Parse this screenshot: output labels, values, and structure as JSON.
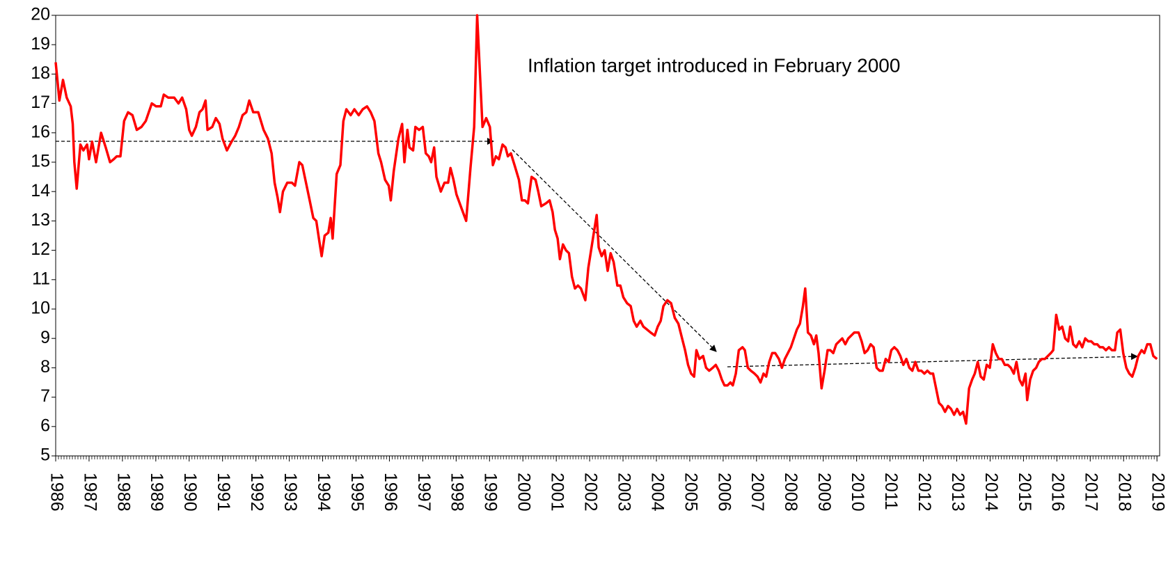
{
  "chart_data": {
    "type": "line",
    "annotation": "Inflation target introduced in February 2000",
    "color": "#ff0000",
    "x": [
      1986.0,
      1986.11,
      1986.22,
      1986.33,
      1986.45,
      1986.51,
      1986.56,
      1986.63,
      1986.74,
      1986.83,
      1986.94,
      1987.0,
      1987.09,
      1987.21,
      1987.36,
      1987.5,
      1987.63,
      1987.74,
      1987.83,
      1987.94,
      1988.05,
      1988.17,
      1988.3,
      1988.43,
      1988.57,
      1988.7,
      1988.88,
      1989.01,
      1989.15,
      1989.24,
      1989.37,
      1989.55,
      1989.68,
      1989.79,
      1989.91,
      1990.0,
      1990.08,
      1990.2,
      1990.31,
      1990.4,
      1990.49,
      1990.55,
      1990.69,
      1990.8,
      1990.91,
      1991.0,
      1991.13,
      1991.27,
      1991.38,
      1991.49,
      1991.6,
      1991.71,
      1991.8,
      1991.92,
      1992.07,
      1992.23,
      1992.36,
      1992.47,
      1992.56,
      1992.65,
      1992.72,
      1992.81,
      1992.94,
      1993.08,
      1993.17,
      1993.3,
      1993.39,
      1993.52,
      1993.61,
      1993.72,
      1993.81,
      1993.9,
      1993.97,
      1994.06,
      1994.17,
      1994.24,
      1994.3,
      1994.42,
      1994.53,
      1994.62,
      1994.71,
      1994.84,
      1994.95,
      1995.08,
      1995.2,
      1995.33,
      1995.44,
      1995.55,
      1995.67,
      1995.75,
      1995.87,
      1995.98,
      1996.04,
      1996.13,
      1996.27,
      1996.38,
      1996.45,
      1996.54,
      1996.6,
      1996.71,
      1996.78,
      1996.89,
      1997.0,
      1997.09,
      1997.18,
      1997.25,
      1997.34,
      1997.41,
      1997.54,
      1997.65,
      1997.76,
      1997.83,
      1997.92,
      1998.01,
      1998.17,
      1998.3,
      1998.43,
      1998.54,
      1998.63,
      1998.79,
      1998.9,
      1999.01,
      1999.1,
      1999.19,
      1999.28,
      1999.39,
      1999.48,
      1999.55,
      1999.64,
      1999.75,
      1999.88,
      1999.97,
      2000.06,
      2000.15,
      2000.26,
      2000.38,
      2000.46,
      2000.55,
      2000.69,
      2000.8,
      2000.89,
      2000.96,
      2001.04,
      2001.11,
      2001.2,
      2001.29,
      2001.38,
      2001.47,
      2001.56,
      2001.65,
      2001.74,
      2001.87,
      2001.96,
      2002.07,
      2002.14,
      2002.21,
      2002.27,
      2002.36,
      2002.45,
      2002.54,
      2002.63,
      2002.72,
      2002.83,
      2002.92,
      2003.01,
      2003.12,
      2003.23,
      2003.32,
      2003.41,
      2003.52,
      2003.61,
      2003.72,
      2003.83,
      2003.95,
      2004.04,
      2004.13,
      2004.21,
      2004.33,
      2004.44,
      2004.55,
      2004.66,
      2004.77,
      2004.86,
      2004.95,
      2005.04,
      2005.13,
      2005.2,
      2005.29,
      2005.4,
      2005.49,
      2005.58,
      2005.69,
      2005.78,
      2005.87,
      2005.96,
      2006.04,
      2006.13,
      2006.22,
      2006.29,
      2006.38,
      2006.47,
      2006.58,
      2006.65,
      2006.74,
      2006.83,
      2006.94,
      2007.03,
      2007.12,
      2007.21,
      2007.29,
      2007.38,
      2007.47,
      2007.56,
      2007.67,
      2007.76,
      2007.85,
      2007.94,
      2008.03,
      2008.12,
      2008.21,
      2008.3,
      2008.39,
      2008.46,
      2008.54,
      2008.63,
      2008.72,
      2008.79,
      2008.86,
      2008.95,
      2009.04,
      2009.13,
      2009.21,
      2009.3,
      2009.39,
      2009.48,
      2009.57,
      2009.66,
      2009.75,
      2009.84,
      2009.93,
      2010.06,
      2010.15,
      2010.24,
      2010.33,
      2010.42,
      2010.51,
      2010.6,
      2010.69,
      2010.78,
      2010.87,
      2010.96,
      2011.04,
      2011.13,
      2011.22,
      2011.31,
      2011.4,
      2011.49,
      2011.58,
      2011.67,
      2011.76,
      2011.85,
      2011.94,
      2012.03,
      2012.12,
      2012.21,
      2012.29,
      2012.38,
      2012.47,
      2012.56,
      2012.65,
      2012.74,
      2012.83,
      2012.92,
      2013.01,
      2013.1,
      2013.19,
      2013.28,
      2013.37,
      2013.46,
      2013.54,
      2013.63,
      2013.72,
      2013.81,
      2013.9,
      2013.99,
      2014.08,
      2014.17,
      2014.26,
      2014.35,
      2014.44,
      2014.53,
      2014.62,
      2014.71,
      2014.79,
      2014.88,
      2014.97,
      2015.06,
      2015.11,
      2015.2,
      2015.29,
      2015.38,
      2015.46,
      2015.55,
      2015.64,
      2015.73,
      2015.82,
      2015.89,
      2015.98,
      2016.07,
      2016.16,
      2016.25,
      2016.34,
      2016.4,
      2016.49,
      2016.58,
      2016.67,
      2016.76,
      2016.85,
      2016.94,
      2017.03,
      2017.12,
      2017.21,
      2017.29,
      2017.38,
      2017.47,
      2017.56,
      2017.65,
      2017.74,
      2017.81,
      2017.9,
      2017.99,
      2018.08,
      2018.17,
      2018.26,
      2018.35,
      2018.44,
      2018.54,
      2018.62,
      2018.71,
      2018.8,
      2018.89,
      2019.0
    ],
    "values": [
      18.4,
      17.1,
      17.8,
      17.2,
      16.9,
      16.3,
      15.0,
      14.1,
      15.6,
      15.4,
      15.6,
      15.1,
      15.7,
      15.0,
      16.0,
      15.5,
      15.0,
      15.1,
      15.2,
      15.2,
      16.4,
      16.7,
      16.6,
      16.1,
      16.2,
      16.4,
      17.0,
      16.9,
      16.9,
      17.3,
      17.2,
      17.2,
      17.0,
      17.2,
      16.8,
      16.1,
      15.9,
      16.2,
      16.7,
      16.8,
      17.1,
      16.1,
      16.2,
      16.5,
      16.3,
      15.8,
      15.4,
      15.7,
      15.9,
      16.2,
      16.6,
      16.7,
      17.1,
      16.7,
      16.7,
      16.1,
      15.8,
      15.3,
      14.3,
      13.8,
      13.3,
      14.0,
      14.3,
      14.3,
      14.2,
      15.0,
      14.9,
      14.2,
      13.7,
      13.1,
      13.0,
      12.3,
      11.8,
      12.5,
      12.6,
      13.1,
      12.4,
      14.6,
      14.9,
      16.4,
      16.8,
      16.6,
      16.8,
      16.6,
      16.8,
      16.9,
      16.7,
      16.4,
      15.3,
      15.0,
      14.4,
      14.2,
      13.7,
      14.7,
      15.8,
      16.3,
      15.0,
      16.1,
      15.5,
      15.4,
      16.2,
      16.1,
      16.2,
      15.3,
      15.2,
      15.0,
      15.5,
      14.5,
      14.0,
      14.3,
      14.3,
      14.8,
      14.4,
      13.9,
      13.4,
      13.0,
      14.8,
      16.2,
      20.0,
      16.2,
      16.5,
      16.2,
      14.9,
      15.2,
      15.1,
      15.6,
      15.5,
      15.2,
      15.3,
      14.9,
      14.4,
      13.7,
      13.7,
      13.6,
      14.5,
      14.4,
      14.0,
      13.5,
      13.6,
      13.7,
      13.3,
      12.7,
      12.4,
      11.7,
      12.2,
      12.0,
      11.9,
      11.1,
      10.7,
      10.8,
      10.7,
      10.3,
      11.4,
      12.2,
      12.7,
      13.2,
      12.1,
      11.8,
      12.0,
      11.3,
      11.9,
      11.6,
      10.8,
      10.8,
      10.4,
      10.2,
      10.1,
      9.6,
      9.4,
      9.6,
      9.4,
      9.3,
      9.2,
      9.1,
      9.4,
      9.6,
      10.1,
      10.3,
      10.2,
      9.7,
      9.5,
      9.0,
      8.6,
      8.1,
      7.8,
      7.7,
      8.6,
      8.3,
      8.4,
      8.0,
      7.9,
      8.0,
      8.1,
      7.9,
      7.6,
      7.4,
      7.4,
      7.5,
      7.4,
      7.8,
      8.6,
      8.7,
      8.6,
      8.0,
      7.9,
      7.8,
      7.7,
      7.5,
      7.8,
      7.7,
      8.2,
      8.5,
      8.5,
      8.3,
      8.0,
      8.3,
      8.5,
      8.7,
      9.0,
      9.3,
      9.5,
      10.1,
      10.7,
      9.2,
      9.1,
      8.8,
      9.1,
      8.5,
      7.3,
      7.9,
      8.6,
      8.6,
      8.5,
      8.8,
      8.9,
      9.0,
      8.8,
      9.0,
      9.1,
      9.2,
      9.2,
      8.9,
      8.5,
      8.6,
      8.8,
      8.7,
      8.0,
      7.9,
      7.9,
      8.3,
      8.2,
      8.6,
      8.7,
      8.6,
      8.4,
      8.1,
      8.3,
      8.0,
      7.9,
      8.2,
      7.9,
      7.9,
      7.8,
      7.9,
      7.8,
      7.8,
      7.3,
      6.8,
      6.7,
      6.5,
      6.7,
      6.6,
      6.4,
      6.6,
      6.4,
      6.5,
      6.1,
      7.3,
      7.6,
      7.8,
      8.2,
      7.7,
      7.6,
      8.1,
      8.0,
      8.8,
      8.5,
      8.3,
      8.3,
      8.1,
      8.1,
      8.0,
      7.8,
      8.2,
      7.6,
      7.4,
      7.8,
      6.9,
      7.6,
      7.9,
      8.0,
      8.2,
      8.3,
      8.3,
      8.4,
      8.5,
      8.6,
      9.8,
      9.3,
      9.4,
      9.0,
      8.9,
      9.4,
      8.8,
      8.7,
      8.9,
      8.7,
      9.0,
      8.9,
      8.9,
      8.8,
      8.8,
      8.7,
      8.7,
      8.6,
      8.7,
      8.6,
      8.6,
      9.2,
      9.3,
      8.5,
      8.0,
      7.8,
      7.7,
      8.0,
      8.4,
      8.6,
      8.5,
      8.8,
      8.8,
      8.4,
      8.3
    ],
    "xlim": [
      1986,
      2019.08
    ],
    "xticks": [
      1986,
      1987,
      1988,
      1989,
      1990,
      1991,
      1992,
      1993,
      1994,
      1995,
      1996,
      1997,
      1998,
      1999,
      2000,
      2001,
      2002,
      2003,
      2004,
      2005,
      2006,
      2007,
      2008,
      2009,
      2010,
      2011,
      2012,
      2013,
      2014,
      2015,
      2016,
      2017,
      2018,
      2019
    ],
    "ylim": [
      5,
      20
    ],
    "yticks": [
      5,
      6,
      7,
      8,
      9,
      10,
      11,
      12,
      13,
      14,
      15,
      16,
      17,
      18,
      19,
      20
    ]
  }
}
